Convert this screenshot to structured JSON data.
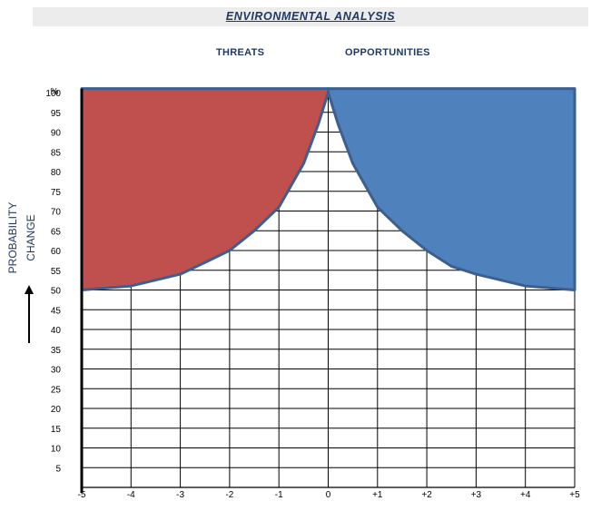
{
  "title": "ENVIRONMENTAL ANALYSIS",
  "headings": {
    "left": "THREATS",
    "right": "OPPORTUNITIES"
  },
  "ylabel": {
    "line1": "PROBABILITY",
    "line2": "CHANGE",
    "unit": "%"
  },
  "colors": {
    "threats": "#c0504d",
    "opportunities": "#4f81bd",
    "outline": "#3b5f8f"
  },
  "chart_data": {
    "type": "area",
    "title": "ENVIRONMENTAL ANALYSIS",
    "xlabel": "",
    "ylabel": "PROBABILITY CHANGE",
    "x_ticks": [
      "-5",
      "-4",
      "-3",
      "-2",
      "-1",
      "0",
      "+1",
      "+2",
      "+3",
      "+4",
      "+5"
    ],
    "y_ticks": [
      "5",
      "10",
      "15",
      "20",
      "25",
      "30",
      "35",
      "40",
      "45",
      "50",
      "55",
      "60",
      "65",
      "70",
      "75",
      "80",
      "85",
      "90",
      "95",
      "100"
    ],
    "xlim": [
      -5,
      5
    ],
    "ylim": [
      0,
      100
    ],
    "grid": true,
    "series": [
      {
        "name": "THREATS",
        "x": [
          -5,
          -4,
          -3,
          -2.5,
          -2,
          -1.5,
          -1,
          -0.5,
          -0.2,
          0
        ],
        "y": [
          50,
          51,
          54,
          57,
          60,
          65,
          71,
          82,
          92,
          100
        ]
      },
      {
        "name": "OPPORTUNITIES",
        "x": [
          0,
          0.2,
          0.5,
          1,
          1.5,
          2,
          2.5,
          3,
          4,
          5
        ],
        "y": [
          100,
          92,
          82,
          71,
          65,
          60,
          56,
          54,
          51,
          50
        ]
      }
    ]
  }
}
